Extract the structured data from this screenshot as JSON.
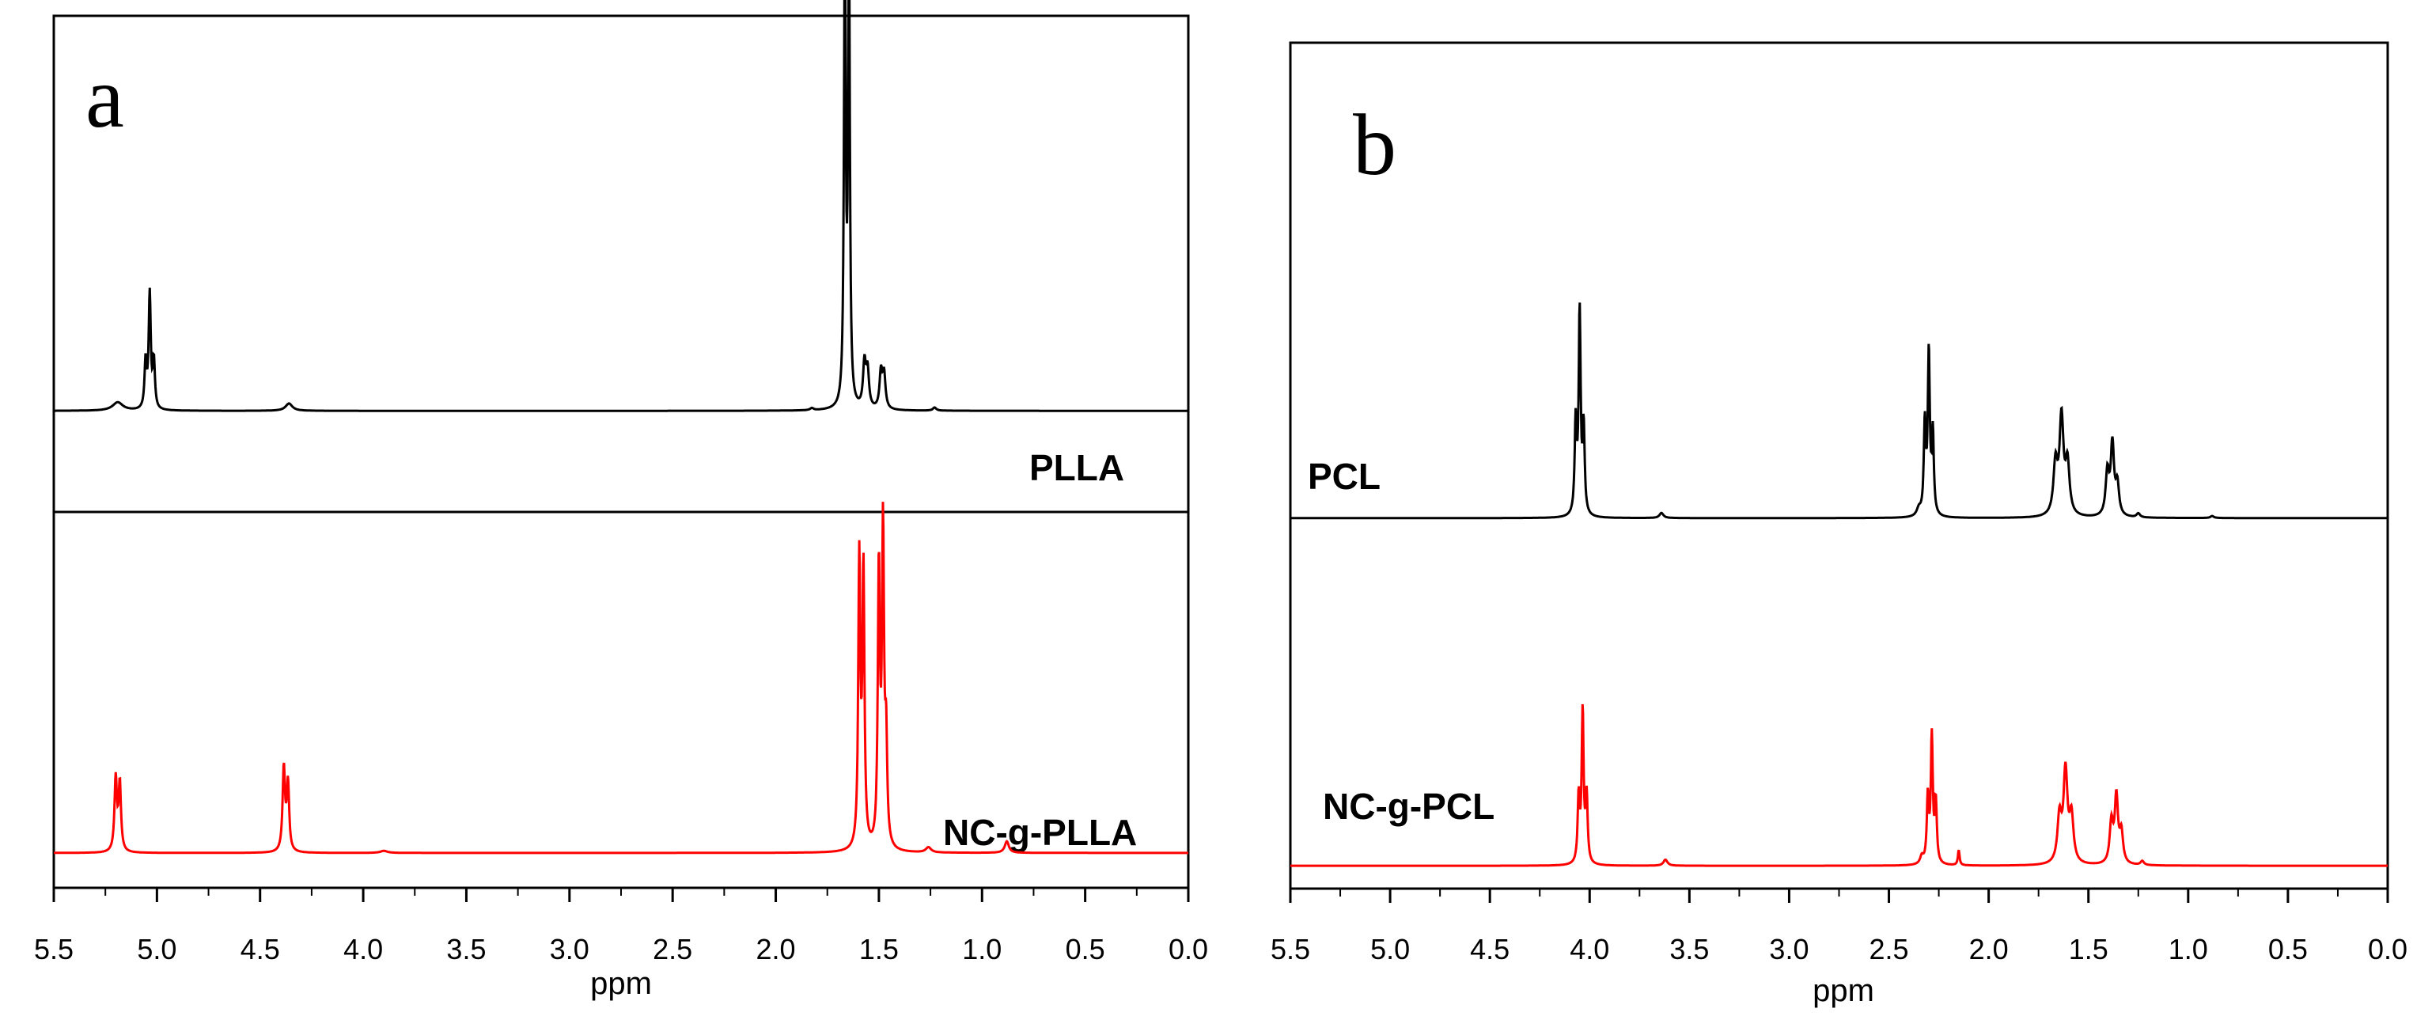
{
  "colors": {
    "top_trace": "#000000",
    "bottom_trace": "#ff0000",
    "axis": "#000000",
    "background": "#ffffff"
  },
  "chart_data": [
    {
      "type": "line",
      "panel_label": "a",
      "xlabel": "ppm",
      "xlim": [
        5.5,
        0.0
      ],
      "x_ticks": [
        "5.5",
        "5.0",
        "4.5",
        "4.0",
        "3.5",
        "3.0",
        "2.5",
        "2.0",
        "1.5",
        "1.0",
        "0.5",
        "0.0"
      ],
      "grid": false,
      "series": [
        {
          "name": "PLLA",
          "color": "#000000",
          "baseline_fraction": 0.453,
          "peaks": [
            {
              "ppm": 5.19,
              "height": 0.016,
              "width": 0.03
            },
            {
              "ppm": 5.055,
              "height": 0.09,
              "width": 0.006
            },
            {
              "ppm": 5.035,
              "height": 0.22,
              "width": 0.006
            },
            {
              "ppm": 5.015,
              "height": 0.09,
              "width": 0.006
            },
            {
              "ppm": 4.36,
              "height": 0.014,
              "width": 0.02
            },
            {
              "ppm": 1.825,
              "height": 0.004,
              "width": 0.01
            },
            {
              "ppm": 1.665,
              "height": 0.9,
              "width": 0.005
            },
            {
              "ppm": 1.645,
              "height": 0.88,
              "width": 0.005
            },
            {
              "ppm": 1.57,
              "height": 0.085,
              "width": 0.008
            },
            {
              "ppm": 1.555,
              "height": 0.07,
              "width": 0.008
            },
            {
              "ppm": 1.49,
              "height": 0.07,
              "width": 0.008
            },
            {
              "ppm": 1.475,
              "height": 0.065,
              "width": 0.008
            },
            {
              "ppm": 1.23,
              "height": 0.006,
              "width": 0.01
            }
          ]
        },
        {
          "name": "NC-g-PLLA",
          "color": "#ff0000",
          "baseline_fraction": 0.96,
          "peaks": [
            {
              "ppm": 5.2,
              "height": 0.14,
              "width": 0.007
            },
            {
              "ppm": 5.18,
              "height": 0.13,
              "width": 0.007
            },
            {
              "ppm": 4.385,
              "height": 0.16,
              "width": 0.007
            },
            {
              "ppm": 4.365,
              "height": 0.13,
              "width": 0.007
            },
            {
              "ppm": 3.9,
              "height": 0.004,
              "width": 0.02
            },
            {
              "ppm": 1.595,
              "height": 0.55,
              "width": 0.006
            },
            {
              "ppm": 1.575,
              "height": 0.53,
              "width": 0.006
            },
            {
              "ppm": 1.5,
              "height": 0.53,
              "width": 0.006
            },
            {
              "ppm": 1.48,
              "height": 0.6,
              "width": 0.006
            },
            {
              "ppm": 1.465,
              "height": 0.19,
              "width": 0.006
            },
            {
              "ppm": 1.26,
              "height": 0.01,
              "width": 0.015
            },
            {
              "ppm": 0.88,
              "height": 0.022,
              "width": 0.012
            }
          ]
        }
      ]
    },
    {
      "type": "line",
      "panel_label": "b",
      "xlabel": "ppm",
      "xlim": [
        5.5,
        0.0
      ],
      "x_ticks": [
        "5.5",
        "5.0",
        "4.5",
        "4.0",
        "3.5",
        "3.0",
        "2.5",
        "2.0",
        "1.5",
        "1.0",
        "0.5",
        "0.0"
      ],
      "grid": false,
      "series": [
        {
          "name": "PCL",
          "color": "#000000",
          "baseline_fraction": 0.562,
          "peaks": [
            {
              "ppm": 4.07,
              "height": 0.18,
              "width": 0.006
            },
            {
              "ppm": 4.05,
              "height": 0.4,
              "width": 0.006
            },
            {
              "ppm": 4.03,
              "height": 0.17,
              "width": 0.006
            },
            {
              "ppm": 3.64,
              "height": 0.01,
              "width": 0.012
            },
            {
              "ppm": 2.35,
              "height": 0.014,
              "width": 0.012
            },
            {
              "ppm": 2.32,
              "height": 0.18,
              "width": 0.006
            },
            {
              "ppm": 2.3,
              "height": 0.32,
              "width": 0.006
            },
            {
              "ppm": 2.28,
              "height": 0.16,
              "width": 0.006
            },
            {
              "ppm": 1.665,
              "height": 0.1,
              "width": 0.012
            },
            {
              "ppm": 1.635,
              "height": 0.19,
              "width": 0.012
            },
            {
              "ppm": 1.605,
              "height": 0.1,
              "width": 0.012
            },
            {
              "ppm": 1.405,
              "height": 0.085,
              "width": 0.01
            },
            {
              "ppm": 1.38,
              "height": 0.14,
              "width": 0.01
            },
            {
              "ppm": 1.355,
              "height": 0.06,
              "width": 0.01
            },
            {
              "ppm": 1.25,
              "height": 0.008,
              "width": 0.01
            },
            {
              "ppm": 0.88,
              "height": 0.004,
              "width": 0.01
            }
          ]
        },
        {
          "name": "NC-g-PCL",
          "color": "#ff0000",
          "baseline_fraction": 0.973,
          "peaks": [
            {
              "ppm": 4.055,
              "height": 0.13,
              "width": 0.006
            },
            {
              "ppm": 4.035,
              "height": 0.3,
              "width": 0.006
            },
            {
              "ppm": 4.015,
              "height": 0.13,
              "width": 0.006
            },
            {
              "ppm": 3.62,
              "height": 0.012,
              "width": 0.012
            },
            {
              "ppm": 2.335,
              "height": 0.015,
              "width": 0.01
            },
            {
              "ppm": 2.305,
              "height": 0.13,
              "width": 0.006
            },
            {
              "ppm": 2.285,
              "height": 0.25,
              "width": 0.006
            },
            {
              "ppm": 2.265,
              "height": 0.12,
              "width": 0.006
            },
            {
              "ppm": 2.15,
              "height": 0.03,
              "width": 0.005
            },
            {
              "ppm": 1.645,
              "height": 0.09,
              "width": 0.012
            },
            {
              "ppm": 1.615,
              "height": 0.18,
              "width": 0.012
            },
            {
              "ppm": 1.585,
              "height": 0.09,
              "width": 0.012
            },
            {
              "ppm": 1.385,
              "height": 0.08,
              "width": 0.01
            },
            {
              "ppm": 1.36,
              "height": 0.13,
              "width": 0.01
            },
            {
              "ppm": 1.335,
              "height": 0.06,
              "width": 0.01
            },
            {
              "ppm": 1.23,
              "height": 0.008,
              "width": 0.01
            }
          ]
        }
      ]
    }
  ]
}
